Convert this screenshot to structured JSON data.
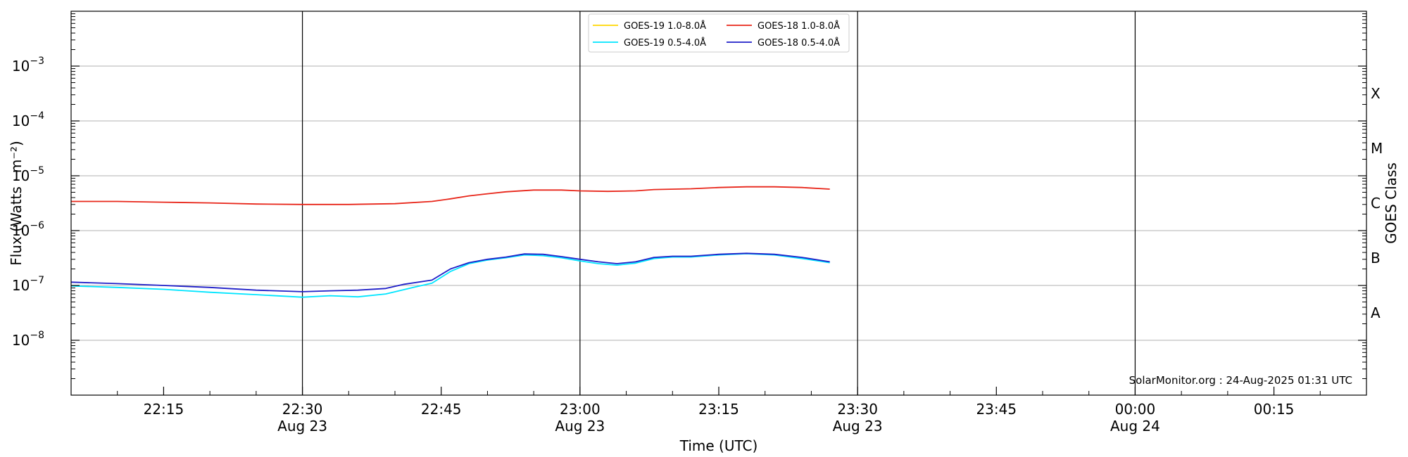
{
  "chart_data": {
    "type": "line",
    "xlabel": "Time (UTC)",
    "ylabel": "Flux (Watts · m⁻²)",
    "right_axis_label": "GOES Class",
    "credit": "SolarMonitor.org : 24-Aug-2025 01:31 UTC",
    "y_scale": "log",
    "ylim": [
      1e-09,
      0.01
    ],
    "xlim": [
      "22:05",
      "00:25"
    ],
    "grid": "horizontal at decades",
    "legend_position": "top-center",
    "y_ticks": [
      {
        "value": 1e-08,
        "mantissa": "10",
        "exp": "−8"
      },
      {
        "value": 1e-07,
        "mantissa": "10",
        "exp": "−7"
      },
      {
        "value": 1e-06,
        "mantissa": "10",
        "exp": "−6"
      },
      {
        "value": 1e-05,
        "mantissa": "10",
        "exp": "−5"
      },
      {
        "value": 0.0001,
        "mantissa": "10",
        "exp": "−4"
      },
      {
        "value": 0.001,
        "mantissa": "10",
        "exp": "−3"
      }
    ],
    "x_ticks": [
      {
        "time": "22:15",
        "label": "22:15",
        "date": ""
      },
      {
        "time": "22:30",
        "label": "22:30",
        "date": "Aug 23"
      },
      {
        "time": "22:45",
        "label": "22:45",
        "date": ""
      },
      {
        "time": "23:00",
        "label": "23:00",
        "date": "Aug 23"
      },
      {
        "time": "23:15",
        "label": "23:15",
        "date": ""
      },
      {
        "time": "23:30",
        "label": "23:30",
        "date": "Aug 23"
      },
      {
        "time": "23:45",
        "label": "23:45",
        "date": ""
      },
      {
        "time": "00:00",
        "label": "00:00",
        "date": "Aug 24"
      },
      {
        "time": "00:15",
        "label": "00:15",
        "date": ""
      }
    ],
    "vertical_lines": [
      "22:30",
      "23:00",
      "23:30",
      "00:00"
    ],
    "goes_classes": [
      {
        "label": "A",
        "value": 3.16e-08
      },
      {
        "label": "B",
        "value": 3.16e-07
      },
      {
        "label": "C",
        "value": 3.16e-06
      },
      {
        "label": "M",
        "value": 3.16e-05
      },
      {
        "label": "X",
        "value": 0.000316
      }
    ],
    "series": [
      {
        "name": "GOES-19 1.0-8.0Å",
        "color": "#FFD700",
        "points": []
      },
      {
        "name": "GOES-18 1.0-8.0Å",
        "color": "#E8261A",
        "points": [
          [
            "22:05",
            3.4e-06
          ],
          [
            "22:10",
            3.4e-06
          ],
          [
            "22:15",
            3.3e-06
          ],
          [
            "22:20",
            3.2e-06
          ],
          [
            "22:25",
            3.05e-06
          ],
          [
            "22:30",
            3e-06
          ],
          [
            "22:35",
            3e-06
          ],
          [
            "22:40",
            3.1e-06
          ],
          [
            "22:44",
            3.4e-06
          ],
          [
            "22:46",
            3.8e-06
          ],
          [
            "22:48",
            4.3e-06
          ],
          [
            "22:50",
            4.7e-06
          ],
          [
            "22:52",
            5.1e-06
          ],
          [
            "22:55",
            5.5e-06
          ],
          [
            "22:58",
            5.5e-06
          ],
          [
            "23:00",
            5.3e-06
          ],
          [
            "23:03",
            5.2e-06
          ],
          [
            "23:06",
            5.3e-06
          ],
          [
            "23:08",
            5.6e-06
          ],
          [
            "23:12",
            5.8e-06
          ],
          [
            "23:15",
            6.1e-06
          ],
          [
            "23:18",
            6.3e-06
          ],
          [
            "23:21",
            6.3e-06
          ],
          [
            "23:24",
            6.1e-06
          ],
          [
            "23:27",
            5.7e-06
          ]
        ]
      },
      {
        "name": "GOES-19 0.5-4.0Å",
        "color": "#00E5FF",
        "points": [
          [
            "22:05",
            9.8e-08
          ],
          [
            "22:10",
            9.2e-08
          ],
          [
            "22:15",
            8.5e-08
          ],
          [
            "22:20",
            7.5e-08
          ],
          [
            "22:25",
            6.8e-08
          ],
          [
            "22:30",
            6.1e-08
          ],
          [
            "22:33",
            6.5e-08
          ],
          [
            "22:36",
            6.2e-08
          ],
          [
            "22:39",
            7e-08
          ],
          [
            "22:42",
            9.2e-08
          ],
          [
            "22:44",
            1.1e-07
          ],
          [
            "22:46",
            1.8e-07
          ],
          [
            "22:48",
            2.5e-07
          ],
          [
            "22:50",
            2.9e-07
          ],
          [
            "22:52",
            3.2e-07
          ],
          [
            "22:54",
            3.6e-07
          ],
          [
            "22:56",
            3.5e-07
          ],
          [
            "22:58",
            3.2e-07
          ],
          [
            "23:00",
            2.8e-07
          ],
          [
            "23:02",
            2.5e-07
          ],
          [
            "23:04",
            2.35e-07
          ],
          [
            "23:06",
            2.55e-07
          ],
          [
            "23:08",
            3.1e-07
          ],
          [
            "23:10",
            3.3e-07
          ],
          [
            "23:12",
            3.3e-07
          ],
          [
            "23:15",
            3.6e-07
          ],
          [
            "23:18",
            3.8e-07
          ],
          [
            "23:21",
            3.6e-07
          ],
          [
            "23:24",
            3.1e-07
          ],
          [
            "23:27",
            2.6e-07
          ]
        ]
      },
      {
        "name": "GOES-18 0.5-4.0Å",
        "color": "#1F1FC8",
        "points": [
          [
            "22:05",
            1.15e-07
          ],
          [
            "22:10",
            1.08e-07
          ],
          [
            "22:15",
            1e-07
          ],
          [
            "22:20",
            9.2e-08
          ],
          [
            "22:25",
            8.2e-08
          ],
          [
            "22:30",
            7.7e-08
          ],
          [
            "22:33",
            8e-08
          ],
          [
            "22:36",
            8.2e-08
          ],
          [
            "22:39",
            8.8e-08
          ],
          [
            "22:41",
            1.05e-07
          ],
          [
            "22:44",
            1.25e-07
          ],
          [
            "22:46",
            2e-07
          ],
          [
            "22:48",
            2.6e-07
          ],
          [
            "22:50",
            3e-07
          ],
          [
            "22:52",
            3.3e-07
          ],
          [
            "22:54",
            3.75e-07
          ],
          [
            "22:56",
            3.7e-07
          ],
          [
            "22:58",
            3.35e-07
          ],
          [
            "23:00",
            3e-07
          ],
          [
            "23:02",
            2.7e-07
          ],
          [
            "23:04",
            2.5e-07
          ],
          [
            "23:06",
            2.7e-07
          ],
          [
            "23:08",
            3.25e-07
          ],
          [
            "23:10",
            3.4e-07
          ],
          [
            "23:12",
            3.4e-07
          ],
          [
            "23:15",
            3.7e-07
          ],
          [
            "23:18",
            3.85e-07
          ],
          [
            "23:21",
            3.7e-07
          ],
          [
            "23:24",
            3.25e-07
          ],
          [
            "23:27",
            2.7e-07
          ]
        ]
      }
    ],
    "legend_order": [
      0,
      2,
      1,
      3
    ]
  }
}
